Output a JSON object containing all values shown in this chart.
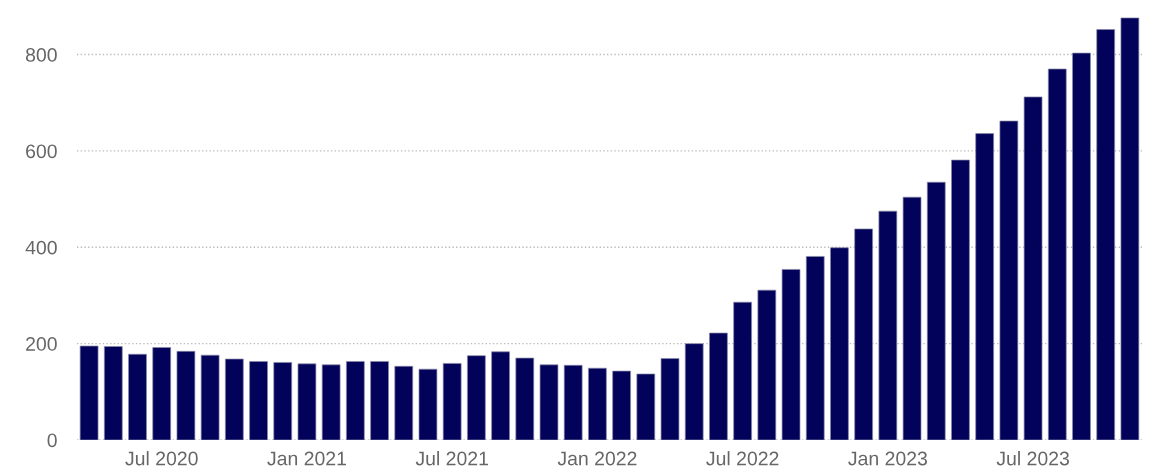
{
  "chart_data": {
    "type": "bar",
    "categories": [
      null,
      null,
      null,
      "Jul 2020",
      null,
      null,
      null,
      null,
      null,
      "Jan 2021",
      null,
      null,
      null,
      null,
      null,
      "Jul 2021",
      null,
      null,
      null,
      null,
      null,
      "Jan 2022",
      null,
      null,
      null,
      null,
      null,
      "Jul 2022",
      null,
      null,
      null,
      null,
      null,
      "Jan 2023",
      null,
      null,
      null,
      null,
      null,
      "Jul 2023",
      null,
      null,
      null,
      null
    ],
    "values": [
      195,
      194,
      178,
      192,
      184,
      176,
      168,
      163,
      161,
      158,
      156,
      163,
      163,
      153,
      147,
      159,
      175,
      183,
      170,
      156,
      155,
      149,
      143,
      137,
      169,
      200,
      222,
      286,
      311,
      354,
      381,
      399,
      438,
      475,
      504,
      535,
      581,
      636,
      662,
      712,
      770,
      803,
      852,
      876
    ],
    "color": "#02025a",
    "ylim": [
      0,
      880
    ],
    "yticks": [
      0,
      200,
      400,
      600,
      800
    ],
    "grid": "y",
    "line_style": "dotted"
  }
}
